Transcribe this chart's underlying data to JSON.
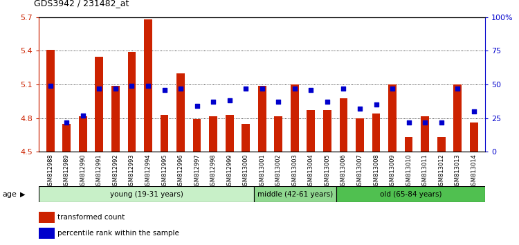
{
  "title": "GDS3942 / 231482_at",
  "samples": [
    "GSM812988",
    "GSM812989",
    "GSM812990",
    "GSM812991",
    "GSM812992",
    "GSM812993",
    "GSM812994",
    "GSM812995",
    "GSM812996",
    "GSM812997",
    "GSM812998",
    "GSM812999",
    "GSM813000",
    "GSM813001",
    "GSM813002",
    "GSM813003",
    "GSM813004",
    "GSM813005",
    "GSM813006",
    "GSM813007",
    "GSM813008",
    "GSM813009",
    "GSM813010",
    "GSM813011",
    "GSM813012",
    "GSM813013",
    "GSM813014"
  ],
  "bar_values": [
    5.41,
    4.75,
    4.82,
    5.35,
    5.09,
    5.39,
    5.68,
    4.83,
    5.2,
    4.79,
    4.82,
    4.83,
    4.75,
    5.09,
    4.82,
    5.1,
    4.87,
    4.87,
    4.98,
    4.8,
    4.84,
    5.1,
    4.63,
    4.82,
    4.63,
    5.1,
    4.76
  ],
  "percentile_values": [
    49,
    22,
    27,
    47,
    47,
    49,
    49,
    46,
    47,
    34,
    37,
    38,
    47,
    47,
    37,
    47,
    46,
    37,
    47,
    32,
    35,
    47,
    22,
    22,
    22,
    47,
    30
  ],
  "bar_color": "#cc2200",
  "dot_color": "#0000cc",
  "ymin": 4.5,
  "ymax": 5.7,
  "yticks": [
    4.5,
    4.8,
    5.1,
    5.4,
    5.7
  ],
  "ytick_labels": [
    "4.5",
    "4.8",
    "5.1",
    "5.4",
    "5.7"
  ],
  "right_yticks": [
    0,
    25,
    50,
    75,
    100
  ],
  "right_ytick_labels": [
    "0",
    "25",
    "50",
    "75",
    "100%"
  ],
  "groups": [
    {
      "label": "young (19-31 years)",
      "start": 0,
      "end": 13,
      "color": "#c8f0c8"
    },
    {
      "label": "middle (42-61 years)",
      "start": 13,
      "end": 18,
      "color": "#90d890"
    },
    {
      "label": "old (65-84 years)",
      "start": 18,
      "end": 27,
      "color": "#50c050"
    }
  ],
  "legend_items": [
    {
      "label": "transformed count",
      "color": "#cc2200"
    },
    {
      "label": "percentile rank within the sample",
      "color": "#0000cc"
    }
  ],
  "background_color": "#ffffff",
  "bar_width": 0.5
}
